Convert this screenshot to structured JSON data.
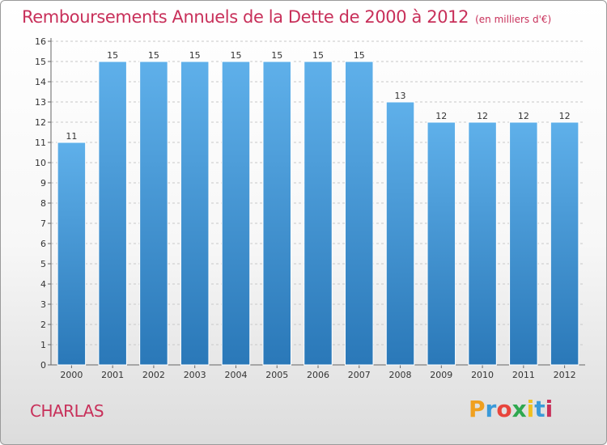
{
  "header": {
    "title": "Remboursements Annuels de la Dette de 2000 à 2012",
    "unit": "(en milliers d'€)"
  },
  "footer": {
    "commune": "CHARLAS",
    "logo_letters": [
      "P",
      "r",
      "o",
      "x",
      "i",
      "t",
      "i"
    ],
    "logo_colors": [
      "#f0a020",
      "#3a9ad9",
      "#e8453c",
      "#2fa84f",
      "#f0c020",
      "#3a9ad9",
      "#c8305a"
    ]
  },
  "colors": {
    "title": "#c8305a",
    "bar_top": "#5fb0ea",
    "bar_bottom": "#2a78b8",
    "grid": "#c8c8c8",
    "axis_text": "#333333"
  },
  "chart_data": {
    "type": "bar",
    "categories": [
      "2000",
      "2001",
      "2002",
      "2003",
      "2004",
      "2005",
      "2006",
      "2007",
      "2008",
      "2009",
      "2010",
      "2011",
      "2012"
    ],
    "values": [
      11,
      15,
      15,
      15,
      15,
      15,
      15,
      15,
      13,
      12,
      12,
      12,
      12
    ],
    "data_labels": [
      "11",
      "15",
      "15",
      "15",
      "15",
      "15",
      "15",
      "15",
      "13",
      "12",
      "12",
      "12",
      "12"
    ],
    "yticks": [
      "0",
      "1",
      "2",
      "3",
      "4",
      "5",
      "6",
      "7",
      "8",
      "9",
      "10",
      "11",
      "12",
      "13",
      "14",
      "15",
      "16"
    ],
    "ylim": [
      0,
      16
    ],
    "grid": true
  }
}
